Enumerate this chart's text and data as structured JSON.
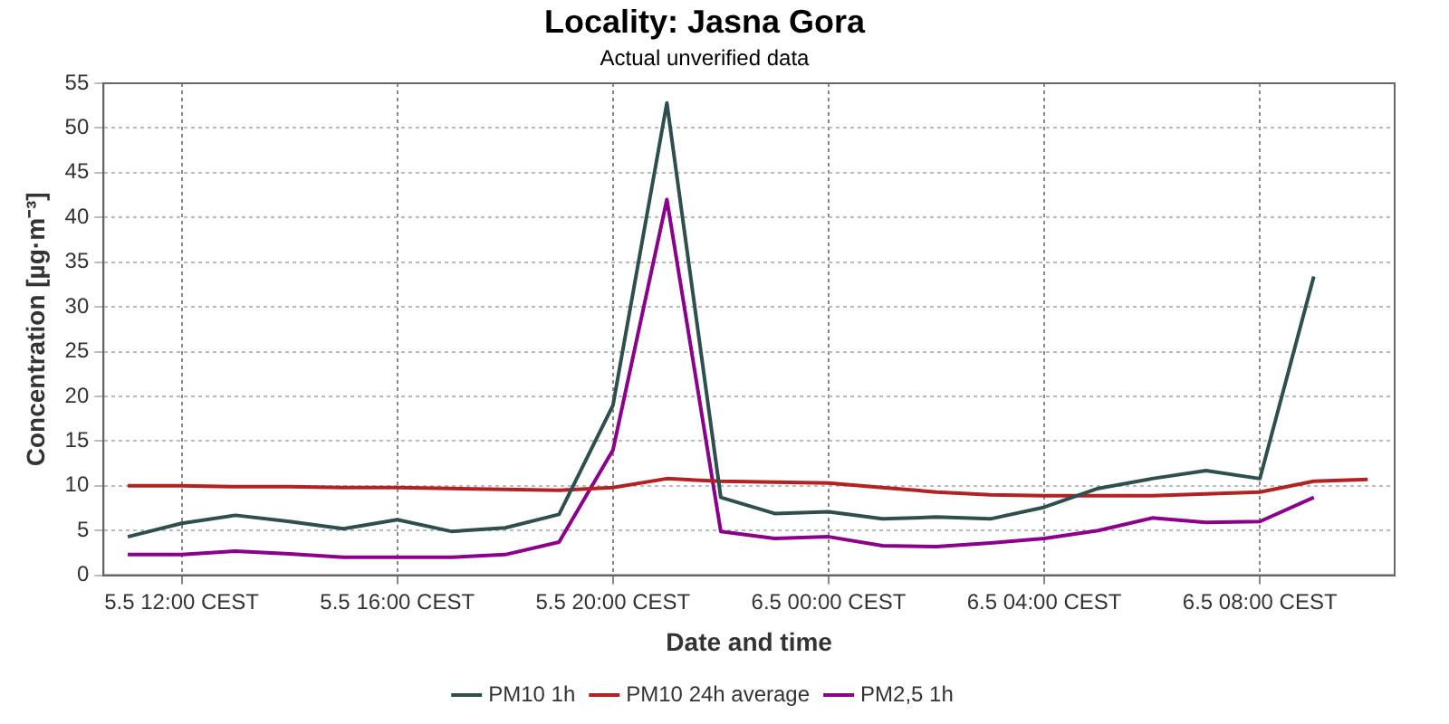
{
  "chart_data": {
    "type": "line",
    "title": "Locality: Jasna Gora",
    "subtitle": "Actual unverified data",
    "xlabel": "Date and time",
    "ylabel": "Concentration [µg·m⁻³]",
    "xlim": [
      "--05-05T10:33",
      "--05-06T10:30"
    ],
    "xticks": [
      {
        "value": "--05-05T12:00",
        "label": "5.5 12:00 CEST"
      },
      {
        "value": "--05-05T16:00",
        "label": "5.5 16:00 CEST"
      },
      {
        "value": "--05-05T20:00",
        "label": "5.5 20:00 CEST"
      },
      {
        "value": "--05-06T00:00",
        "label": "6.5 00:00 CEST"
      },
      {
        "value": "--05-06T04:00",
        "label": "6.5 04:00 CEST"
      },
      {
        "value": "--05-06T08:00",
        "label": "6.5 08:00 CEST"
      }
    ],
    "ylim": [
      0,
      55
    ],
    "yticks": [
      0,
      5,
      10,
      15,
      20,
      25,
      30,
      35,
      40,
      45,
      50,
      55
    ],
    "grid": true,
    "legend": "bottom",
    "marker": "none",
    "line_style": "solid",
    "x": [
      "--05-05T11:00",
      "--05-05T12:00",
      "--05-05T13:00",
      "--05-05T14:00",
      "--05-05T15:00",
      "--05-05T16:00",
      "--05-05T17:00",
      "--05-05T18:00",
      "--05-05T19:00",
      "--05-05T20:00",
      "--05-05T21:00",
      "--05-05T22:00",
      "--05-05T23:00",
      "--05-06T00:00",
      "--05-06T01:00",
      "--05-06T02:00",
      "--05-06T03:00",
      "--05-06T04:00",
      "--05-06T05:00",
      "--05-06T06:00",
      "--05-06T07:00",
      "--05-06T08:00",
      "--05-06T09:00",
      "--05-06T10:00"
    ],
    "series": [
      {
        "name": "PM10 1h",
        "color": "#2f4f4f",
        "values": [
          4.3,
          5.8,
          6.7,
          6.0,
          5.2,
          6.2,
          4.9,
          5.3,
          6.8,
          19,
          52.8,
          8.7,
          6.9,
          7.1,
          6.3,
          6.5,
          6.3,
          7.6,
          9.7,
          10.8,
          11.7,
          10.8,
          33.4,
          null
        ]
      },
      {
        "name": "PM10 24h average",
        "color": "#b22222",
        "values": [
          10.0,
          10.0,
          9.9,
          9.9,
          9.8,
          9.8,
          9.7,
          9.6,
          9.5,
          9.8,
          10.8,
          10.5,
          10.4,
          10.3,
          9.8,
          9.3,
          9.0,
          8.9,
          8.9,
          8.9,
          9.1,
          9.3,
          10.5,
          10.7
        ]
      },
      {
        "name": "PM2,5 1h",
        "color": "#8b008b",
        "values": [
          2.3,
          2.3,
          2.7,
          2.4,
          2.0,
          2.0,
          2.0,
          2.3,
          3.7,
          14,
          42,
          4.9,
          4.1,
          4.3,
          3.3,
          3.2,
          3.6,
          4.1,
          5.0,
          6.4,
          5.9,
          6.0,
          8.7,
          null
        ]
      }
    ]
  }
}
